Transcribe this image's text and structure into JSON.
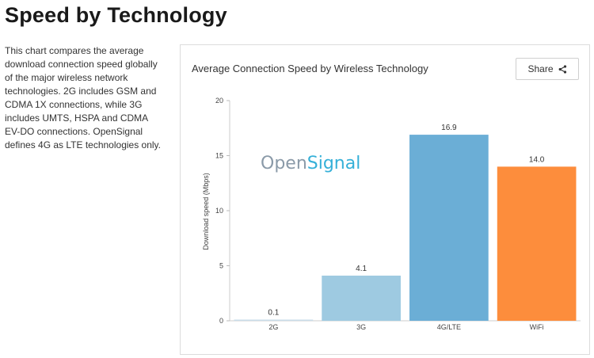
{
  "page": {
    "title": "Speed by Technology",
    "description": "This chart compares the average download connection speed globally of the major wireless network technologies. 2G includes GSM and CDMA 1X connections, while 3G includes UMTS, HSPA and CDMA EV-DO connections. OpenSignal defines 4G as LTE technologies only."
  },
  "chart_card": {
    "share_label": "Share",
    "share_icon": "share-icon",
    "watermark": {
      "part1": "Open",
      "part2": "Signal",
      "color1": "#8a9aa8",
      "color2": "#35b0d8"
    }
  },
  "chart_data": {
    "type": "bar",
    "title": "Average Connection Speed by Wireless Technology",
    "ylabel": "Download speed (Mbps)",
    "xlabel": "",
    "ylim": [
      0,
      20
    ],
    "yticks": [
      0,
      5,
      10,
      15,
      20
    ],
    "categories": [
      "2G",
      "3G",
      "4G/LTE",
      "WiFi"
    ],
    "values": [
      0.1,
      4.1,
      16.9,
      14.0
    ],
    "value_labels": [
      "0.1",
      "4.1",
      "16.9",
      "14.0"
    ],
    "colors": [
      "#c9dde9",
      "#9ecae1",
      "#6baed6",
      "#fd8d3c"
    ],
    "grid": false,
    "legend": "none"
  }
}
